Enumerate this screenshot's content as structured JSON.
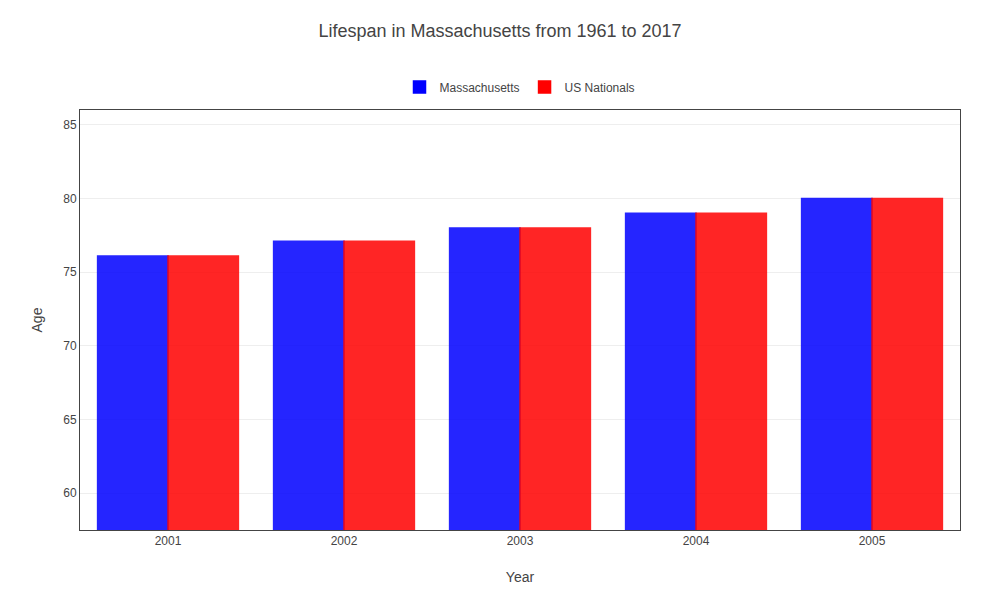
{
  "chart_data": {
    "type": "bar",
    "title": "Lifespan in Massachusetts from 1961 to 2017",
    "xlabel": "Year",
    "ylabel": "Age",
    "categories": [
      "2001",
      "2002",
      "2003",
      "2004",
      "2005"
    ],
    "series": [
      {
        "name": "Massachusetts",
        "color": "#0000ff",
        "values": [
          76.1,
          77.1,
          78.0,
          79.0,
          80.0
        ]
      },
      {
        "name": "US Nationals",
        "color": "#ff0000",
        "values": [
          76.1,
          77.1,
          78.0,
          79.0,
          80.0
        ]
      }
    ],
    "ylim": [
      57.5,
      86
    ],
    "yticks": [
      60,
      65,
      70,
      75,
      80,
      85
    ],
    "grid": true,
    "legend": "top"
  }
}
